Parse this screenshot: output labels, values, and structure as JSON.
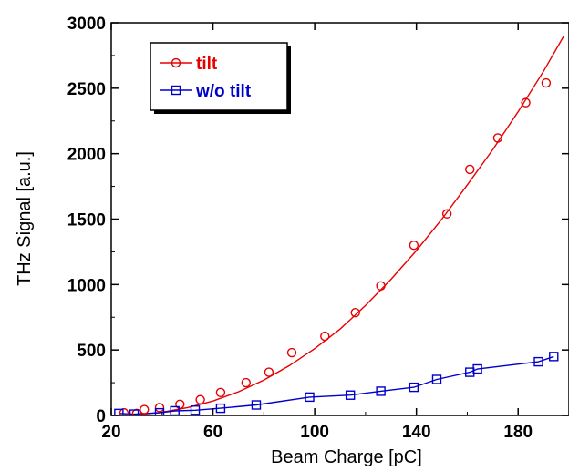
{
  "chart_data": {
    "type": "scatter",
    "title": "",
    "xlabel": "Beam Charge [pC]",
    "ylabel": "THz Signal [a.u.]",
    "xlim": [
      20,
      200
    ],
    "ylim": [
      0,
      3000
    ],
    "x_ticks": [
      20,
      60,
      100,
      140,
      180
    ],
    "x_tick_labels": [
      "20",
      "60",
      "100",
      "140",
      "180"
    ],
    "y_ticks": [
      0,
      500,
      1000,
      1500,
      2000,
      2500,
      3000
    ],
    "y_tick_labels": [
      "0",
      "500",
      "1000",
      "1500",
      "2000",
      "2500",
      "3000"
    ],
    "grid": false,
    "legend_position": "top-left",
    "series": [
      {
        "name": "tilt",
        "color": "#e60000",
        "marker": "circle",
        "x": [
          25,
          30,
          33,
          39,
          47,
          55,
          63,
          73,
          82,
          91,
          104,
          116,
          126,
          139,
          152,
          161,
          172,
          183,
          191
        ],
        "y": [
          20,
          15,
          45,
          60,
          85,
          120,
          175,
          250,
          330,
          480,
          605,
          785,
          990,
          1300,
          1540,
          1880,
          2120,
          2390,
          2540
        ],
        "fit_x": [
          20,
          30,
          40,
          50,
          60,
          70,
          80,
          90,
          100,
          110,
          120,
          130,
          140,
          150,
          160,
          170,
          180,
          190,
          198
        ],
        "fit_y": [
          0,
          5,
          25,
          60,
          110,
          180,
          270,
          380,
          510,
          660,
          840,
          1040,
          1260,
          1500,
          1760,
          2030,
          2320,
          2630,
          2900
        ]
      },
      {
        "name": "w/o tilt",
        "color": "#0000cc",
        "marker": "square",
        "x": [
          23,
          29,
          39,
          45,
          53,
          63,
          77,
          98,
          114,
          126,
          139,
          148,
          161,
          164,
          188,
          194
        ],
        "y": [
          15,
          10,
          20,
          35,
          40,
          55,
          80,
          140,
          155,
          185,
          215,
          275,
          330,
          355,
          410,
          450
        ],
        "fit_x": [
          23,
          29,
          39,
          45,
          53,
          63,
          77,
          98,
          114,
          126,
          139,
          148,
          161,
          164,
          188,
          194
        ],
        "fit_y": [
          15,
          10,
          20,
          35,
          40,
          55,
          80,
          140,
          155,
          185,
          215,
          275,
          330,
          355,
          410,
          450
        ]
      }
    ]
  }
}
